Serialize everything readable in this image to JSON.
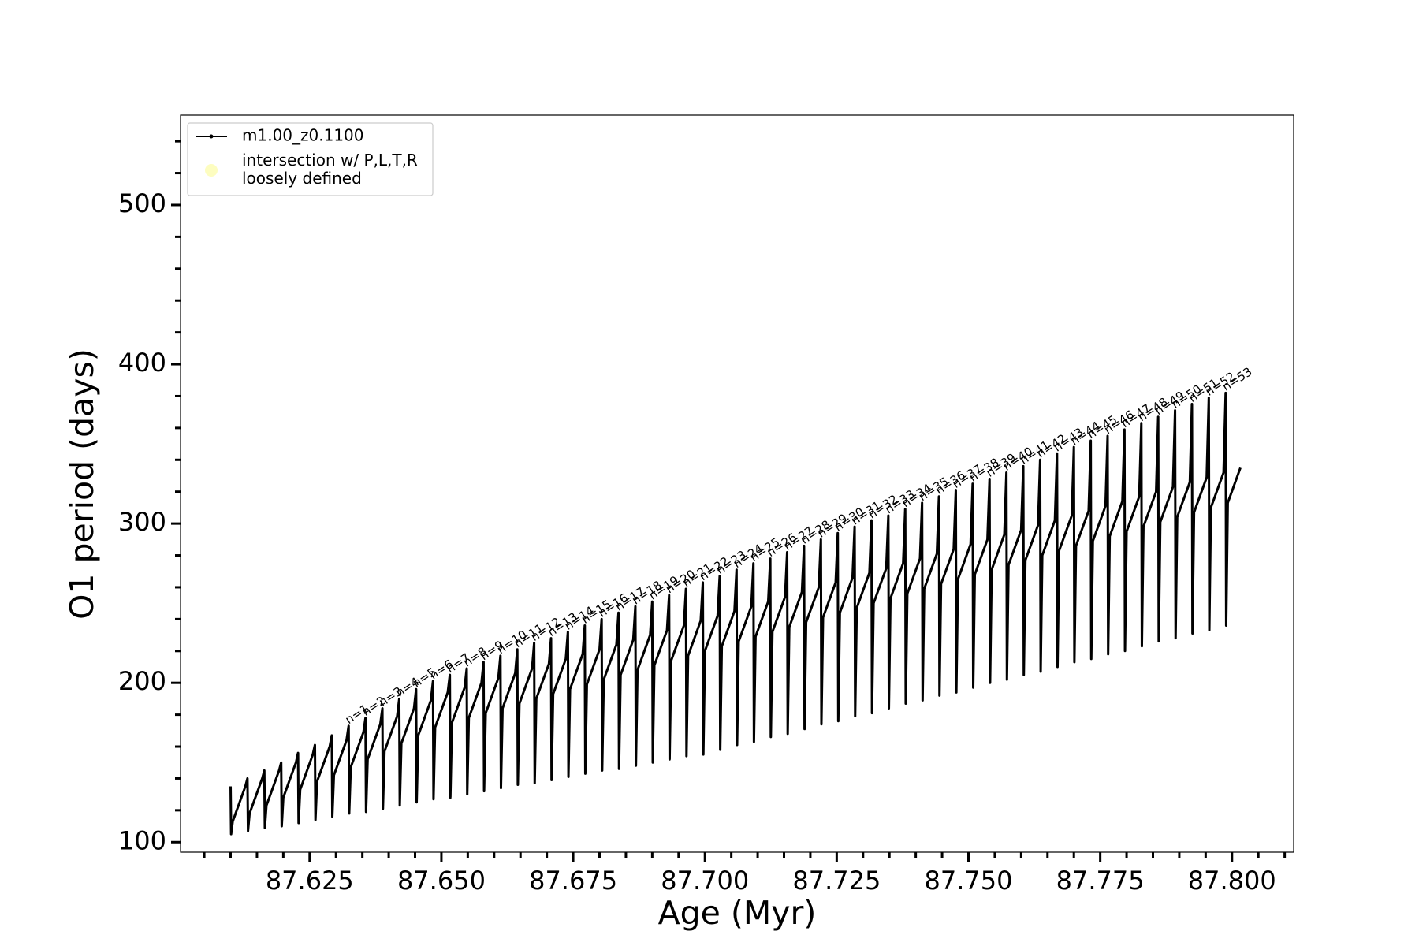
{
  "chart_data": {
    "type": "line",
    "xlabel": "Age (Myr)",
    "ylabel": "O1 period (days)",
    "xlim": [
      87.6005,
      87.8117
    ],
    "ylim": [
      93.7,
      556.4
    ],
    "xticks": [
      {
        "value": 87.625,
        "label": "87.625"
      },
      {
        "value": 87.65,
        "label": "87.650"
      },
      {
        "value": 87.675,
        "label": "87.675"
      },
      {
        "value": 87.7,
        "label": "87.700"
      },
      {
        "value": 87.725,
        "label": "87.725"
      },
      {
        "value": 87.75,
        "label": "87.750"
      },
      {
        "value": 87.775,
        "label": "87.775"
      },
      {
        "value": 87.8,
        "label": "87.800"
      }
    ],
    "xticks_minor": [
      87.605,
      87.61,
      87.615,
      87.62,
      87.63,
      87.635,
      87.64,
      87.645,
      87.655,
      87.66,
      87.665,
      87.67,
      87.68,
      87.685,
      87.69,
      87.695,
      87.705,
      87.71,
      87.715,
      87.72,
      87.73,
      87.735,
      87.74,
      87.745,
      87.755,
      87.76,
      87.765,
      87.77,
      87.78,
      87.785,
      87.79,
      87.795,
      87.805,
      87.81
    ],
    "yticks": [
      100,
      200,
      300,
      400,
      500
    ],
    "yticks_minor": [
      120,
      140,
      160,
      180,
      220,
      240,
      260,
      280,
      320,
      340,
      360,
      380,
      420,
      440,
      460,
      480,
      520,
      540
    ],
    "grid": false,
    "legend": "upper left",
    "series": [
      {
        "name": "m1.00_z0.1100",
        "color": "#000000",
        "x": [
          87.61,
          87.6101,
          87.6104,
          87.6128,
          87.6132,
          87.6133,
          87.6136,
          87.616,
          87.6164,
          87.6165,
          87.6168,
          87.6192,
          87.6196,
          87.6197,
          87.62,
          87.6224,
          87.6228,
          87.6229,
          87.6232,
          87.6256,
          87.626,
          87.6261,
          87.6264,
          87.6288,
          87.6292,
          87.6293,
          87.6296,
          87.632,
          87.6324,
          87.6325,
          87.6328,
          87.6352,
          87.6356,
          87.6357,
          87.636,
          87.6384,
          87.6388,
          87.6389,
          87.6392,
          87.6416,
          87.642,
          87.6421,
          87.6424,
          87.6448,
          87.6452,
          87.6453,
          87.6456,
          87.648,
          87.6484,
          87.6485,
          87.6488,
          87.6512,
          87.6516,
          87.6517,
          87.652,
          87.6544,
          87.6548,
          87.6549,
          87.6552,
          87.6576,
          87.658,
          87.6581,
          87.6584,
          87.6608,
          87.6612,
          87.6613,
          87.6616,
          87.664,
          87.6644,
          87.6645,
          87.6648,
          87.6672,
          87.6676,
          87.6677,
          87.668,
          87.6704,
          87.6708,
          87.6709,
          87.6712,
          87.6736,
          87.674,
          87.6741,
          87.6744,
          87.6768,
          87.6772,
          87.6773,
          87.6776,
          87.68,
          87.6804,
          87.6805,
          87.6808,
          87.6832,
          87.6836,
          87.6837,
          87.684,
          87.6864,
          87.6868,
          87.6869,
          87.6872,
          87.6896,
          87.69,
          87.6901,
          87.6904,
          87.6928,
          87.6932,
          87.6933,
          87.6936,
          87.696,
          87.6964,
          87.6965,
          87.6968,
          87.6992,
          87.6996,
          87.6997,
          87.7,
          87.7024,
          87.7028,
          87.7029,
          87.7032,
          87.7056,
          87.706,
          87.7061,
          87.7064,
          87.7088,
          87.7092,
          87.7093,
          87.7096,
          87.712,
          87.7124,
          87.7125,
          87.7128,
          87.7152,
          87.7156,
          87.7157,
          87.716,
          87.7184,
          87.7188,
          87.7189,
          87.7192,
          87.7216,
          87.722,
          87.7221,
          87.7224,
          87.7248,
          87.7252,
          87.7253,
          87.7256,
          87.728,
          87.7284,
          87.7285,
          87.7288,
          87.7312,
          87.7316,
          87.7317,
          87.732,
          87.7344,
          87.7348,
          87.7349,
          87.7352,
          87.7376,
          87.738,
          87.7381,
          87.7384,
          87.7408,
          87.7412,
          87.7413,
          87.7416,
          87.744,
          87.7444,
          87.7445,
          87.7448,
          87.7472,
          87.7476,
          87.7477,
          87.748,
          87.7504,
          87.7508,
          87.7509,
          87.7512,
          87.7536,
          87.754,
          87.7541,
          87.7544,
          87.7568,
          87.7572,
          87.7573,
          87.7576,
          87.76,
          87.7604,
          87.7605,
          87.7608,
          87.7632,
          87.7636,
          87.7637,
          87.764,
          87.7664,
          87.7668,
          87.7669,
          87.7672,
          87.7696,
          87.77,
          87.7701,
          87.7704,
          87.7728,
          87.7732,
          87.7733,
          87.7736,
          87.776,
          87.7764,
          87.7765,
          87.7768,
          87.7792,
          87.7796,
          87.7797,
          87.78,
          87.7824,
          87.7828,
          87.7829,
          87.7832,
          87.7856,
          87.786,
          87.7861,
          87.7864,
          87.7888,
          87.7892,
          87.7893,
          87.7896,
          87.792,
          87.7924,
          87.7925,
          87.7928,
          87.7952,
          87.7956,
          87.7957,
          87.796,
          87.7984,
          87.7988,
          87.7989,
          87.7992,
          87.8016
        ],
        "values": [
          135,
          105,
          113,
          135,
          140,
          107,
          118,
          140,
          145,
          109,
          123,
          145,
          150,
          110,
          128,
          150,
          156,
          112,
          133,
          155,
          161,
          114,
          138,
          160,
          167,
          116,
          142,
          164,
          173,
          118,
          147,
          169,
          178,
          119,
          152,
          174,
          184,
          121,
          157,
          179,
          190,
          123,
          162,
          184,
          196,
          125,
          167,
          189,
          201,
          127,
          172,
          194,
          205,
          128,
          175,
          197,
          209,
          130,
          178,
          200,
          213,
          132,
          181,
          203,
          217,
          134,
          184,
          206,
          221,
          136,
          187,
          209,
          225,
          137,
          190,
          212,
          228,
          139,
          193,
          215,
          232,
          141,
          196,
          218,
          236,
          143,
          199,
          221,
          240,
          145,
          202,
          224,
          244,
          146,
          205,
          227,
          248,
          148,
          208,
          230,
          251,
          150,
          211,
          233,
          255,
          152,
          214,
          236,
          259,
          154,
          217,
          239,
          263,
          155,
          220,
          242,
          267,
          158,
          223,
          245,
          271,
          161,
          226,
          248,
          275,
          163,
          229,
          251,
          278,
          166,
          232,
          254,
          282,
          168,
          235,
          257,
          286,
          171,
          238,
          260,
          290,
          174,
          241,
          263,
          294,
          176,
          244,
          266,
          298,
          179,
          247,
          269,
          302,
          181,
          250,
          272,
          305,
          184,
          253,
          275,
          309,
          187,
          256,
          278,
          313,
          189,
          259,
          281,
          317,
          192,
          262,
          284,
          321,
          194,
          265,
          287,
          325,
          197,
          268,
          290,
          328,
          200,
          271,
          293,
          332,
          202,
          274,
          296,
          336,
          205,
          277,
          299,
          340,
          207,
          280,
          302,
          344,
          210,
          283,
          305,
          348,
          213,
          286,
          308,
          352,
          215,
          289,
          311,
          355,
          218,
          292,
          314,
          359,
          220,
          295,
          317,
          363,
          223,
          298,
          320,
          367,
          226,
          301,
          323,
          371,
          228,
          304,
          326,
          375,
          231,
          307,
          329,
          379,
          233,
          310,
          332,
          382,
          236,
          313,
          335
        ]
      },
      {
        "name": "intersection w/ P,L,T,R\nloosely defined",
        "color": "#fdfdc0",
        "x": [],
        "values": []
      }
    ],
    "annotations": [
      {
        "text": "n=1",
        "x": 87.6324,
        "y": 173
      },
      {
        "text": "n=2",
        "x": 87.6356,
        "y": 178
      },
      {
        "text": "n=3",
        "x": 87.6388,
        "y": 184
      },
      {
        "text": "n=4",
        "x": 87.642,
        "y": 190
      },
      {
        "text": "n=5",
        "x": 87.6452,
        "y": 196
      },
      {
        "text": "n=6",
        "x": 87.6484,
        "y": 201
      },
      {
        "text": "n=7",
        "x": 87.6516,
        "y": 205
      },
      {
        "text": "n=8",
        "x": 87.6548,
        "y": 209
      },
      {
        "text": "n=9",
        "x": 87.658,
        "y": 213
      },
      {
        "text": "n=10",
        "x": 87.6612,
        "y": 217
      },
      {
        "text": "n=11",
        "x": 87.6644,
        "y": 221
      },
      {
        "text": "n=12",
        "x": 87.6676,
        "y": 225
      },
      {
        "text": "n=13",
        "x": 87.6708,
        "y": 228
      },
      {
        "text": "n=14",
        "x": 87.674,
        "y": 232
      },
      {
        "text": "n=15",
        "x": 87.6772,
        "y": 236
      },
      {
        "text": "n=16",
        "x": 87.6804,
        "y": 240
      },
      {
        "text": "n=17",
        "x": 87.6836,
        "y": 244
      },
      {
        "text": "n=18",
        "x": 87.6868,
        "y": 248
      },
      {
        "text": "n=19",
        "x": 87.69,
        "y": 251
      },
      {
        "text": "n=20",
        "x": 87.6932,
        "y": 255
      },
      {
        "text": "n=21",
        "x": 87.6964,
        "y": 259
      },
      {
        "text": "n=22",
        "x": 87.6996,
        "y": 263
      },
      {
        "text": "n=23",
        "x": 87.7028,
        "y": 267
      },
      {
        "text": "n=24",
        "x": 87.706,
        "y": 271
      },
      {
        "text": "n=25",
        "x": 87.7092,
        "y": 275
      },
      {
        "text": "n=26",
        "x": 87.7124,
        "y": 278
      },
      {
        "text": "n=27",
        "x": 87.7156,
        "y": 282
      },
      {
        "text": "n=28",
        "x": 87.7188,
        "y": 286
      },
      {
        "text": "n=29",
        "x": 87.722,
        "y": 290
      },
      {
        "text": "n=30",
        "x": 87.7252,
        "y": 294
      },
      {
        "text": "n=31",
        "x": 87.7284,
        "y": 298
      },
      {
        "text": "n=32",
        "x": 87.7316,
        "y": 302
      },
      {
        "text": "n=33",
        "x": 87.7348,
        "y": 305
      },
      {
        "text": "n=34",
        "x": 87.738,
        "y": 309
      },
      {
        "text": "n=35",
        "x": 87.7412,
        "y": 313
      },
      {
        "text": "n=36",
        "x": 87.7444,
        "y": 317
      },
      {
        "text": "n=37",
        "x": 87.7476,
        "y": 321
      },
      {
        "text": "n=38",
        "x": 87.7508,
        "y": 325
      },
      {
        "text": "n=39",
        "x": 87.754,
        "y": 328
      },
      {
        "text": "n=40",
        "x": 87.7572,
        "y": 332
      },
      {
        "text": "n=41",
        "x": 87.7604,
        "y": 336
      },
      {
        "text": "n=42",
        "x": 87.7636,
        "y": 340
      },
      {
        "text": "n=43",
        "x": 87.7668,
        "y": 344
      },
      {
        "text": "n=44",
        "x": 87.77,
        "y": 348
      },
      {
        "text": "n=45",
        "x": 87.7732,
        "y": 352
      },
      {
        "text": "n=46",
        "x": 87.7764,
        "y": 355
      },
      {
        "text": "n=47",
        "x": 87.7796,
        "y": 359
      },
      {
        "text": "n=48",
        "x": 87.7828,
        "y": 363
      },
      {
        "text": "n=49",
        "x": 87.786,
        "y": 367
      },
      {
        "text": "n=50",
        "x": 87.7892,
        "y": 371
      },
      {
        "text": "n=51",
        "x": 87.7924,
        "y": 375
      },
      {
        "text": "n=52",
        "x": 87.7956,
        "y": 379
      },
      {
        "text": "n=53",
        "x": 87.7988,
        "y": 382
      }
    ]
  }
}
